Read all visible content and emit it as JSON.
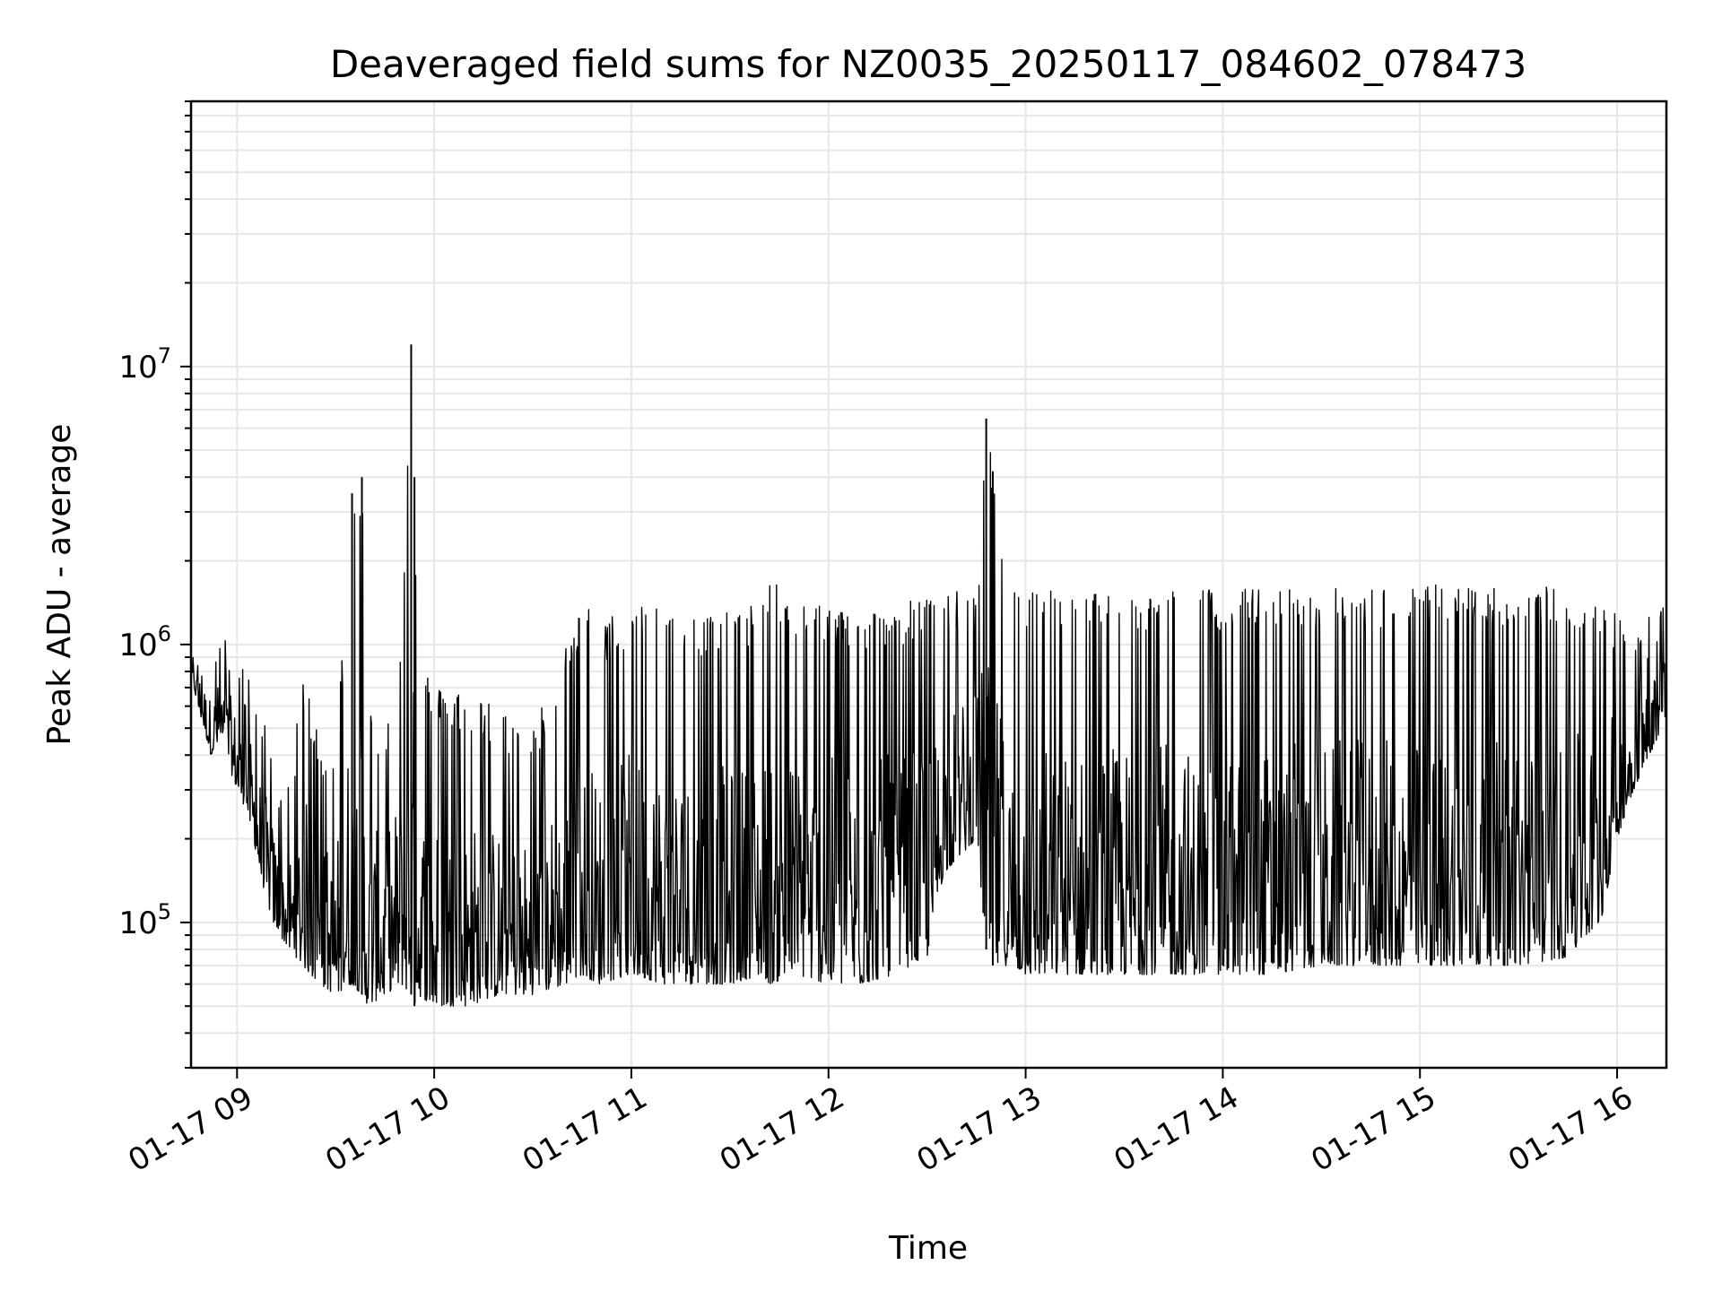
{
  "chart_data": {
    "type": "line",
    "title": "Deaveraged field sums for NZ0035_20250117_084602_078473",
    "xlabel": "Time",
    "ylabel": "Peak ADU - average",
    "yscale": "log",
    "ylim": [
      30000,
      90000000
    ],
    "xlim": [
      "01-17 08:46",
      "01-17 16:15"
    ],
    "grid": true,
    "legend": "none",
    "line_color": "#000000",
    "x_ticks": [
      "01-17 09",
      "01-17 10",
      "01-17 11",
      "01-17 12",
      "01-17 13",
      "01-17 14",
      "01-17 15",
      "01-17 16"
    ],
    "y_ticks": [
      {
        "base": "10",
        "exp": "5"
      },
      {
        "base": "10",
        "exp": "6"
      },
      {
        "base": "10",
        "exp": "7"
      }
    ],
    "series": [
      {
        "x": [
          "01-17 08:46",
          "01-17 08:48",
          "01-17 08:50",
          "01-17 08:52",
          "01-17 08:55",
          "01-17 08:58",
          "01-17 09:00",
          "01-17 09:03",
          "01-17 09:05",
          "01-17 09:07",
          "01-17 09:09",
          "01-17 09:11",
          "01-17 09:13",
          "01-17 09:16",
          "01-17 09:20",
          "01-17 09:25",
          "01-17 09:30",
          "01-17 09:35",
          "01-17 09:38",
          "01-17 09:40",
          "01-17 09:45",
          "01-17 09:50",
          "01-17 09:53",
          "01-17 09:54",
          "01-17 09:55",
          "01-17 10:00",
          "01-17 10:10",
          "01-17 10:20",
          "01-17 10:30",
          "01-17 10:40",
          "01-17 10:45",
          "01-17 10:50",
          "01-17 11:00",
          "01-17 11:10",
          "01-17 11:20",
          "01-17 11:30",
          "01-17 11:40",
          "01-17 11:42",
          "01-17 11:50",
          "01-17 12:00",
          "01-17 12:10",
          "01-17 12:20",
          "01-17 12:30",
          "01-17 12:35",
          "01-17 12:45",
          "01-17 12:48",
          "01-17 12:50",
          "01-17 12:55",
          "01-17 13:00",
          "01-17 13:10",
          "01-17 13:20",
          "01-17 13:30",
          "01-17 13:45",
          "01-17 14:00",
          "01-17 14:15",
          "01-17 14:30",
          "01-17 14:45",
          "01-17 15:00",
          "01-17 15:15",
          "01-17 15:30",
          "01-17 15:45",
          "01-17 15:55",
          "01-17 16:00",
          "01-17 16:05",
          "01-17 16:10",
          "01-17 16:15"
        ],
        "low": [
          800000,
          600000,
          500000,
          400000,
          450000,
          350000,
          300000,
          250000,
          200000,
          150000,
          120000,
          100000,
          90000,
          80000,
          70000,
          60000,
          55000,
          60000,
          55000,
          50000,
          55000,
          60000,
          55000,
          50000,
          55000,
          50000,
          50000,
          55000,
          55000,
          60000,
          65000,
          60000,
          65000,
          60000,
          60000,
          60000,
          65000,
          60000,
          65000,
          60000,
          60000,
          65000,
          75000,
          150000,
          200000,
          80000,
          70000,
          70000,
          65000,
          65000,
          65000,
          65000,
          65000,
          65000,
          65000,
          70000,
          70000,
          70000,
          70000,
          70000,
          75000,
          100000,
          200000,
          300000,
          400000,
          550000
        ],
        "high": [
          900000,
          1000000,
          950000,
          900000,
          1100000,
          1000000,
          900000,
          800000,
          700000,
          600000,
          500000,
          400000,
          350000,
          300000,
          800000,
          500000,
          400000,
          3500000,
          4000000,
          600000,
          500000,
          1000000,
          12000000,
          4000000,
          1000000,
          700000,
          700000,
          600000,
          500000,
          1000000,
          1500000,
          1200000,
          1400000,
          1500000,
          1300000,
          1300000,
          1500000,
          1700000,
          1500000,
          1400000,
          1300000,
          1400000,
          1500000,
          1600000,
          1500000,
          6500000,
          4200000,
          1600000,
          1600000,
          1600000,
          1550000,
          1550000,
          1600000,
          1600000,
          1600000,
          1600000,
          1600000,
          1650000,
          1650000,
          1650000,
          1600000,
          1500000,
          1300000,
          1100000,
          1300000,
          1600000
        ]
      }
    ]
  }
}
